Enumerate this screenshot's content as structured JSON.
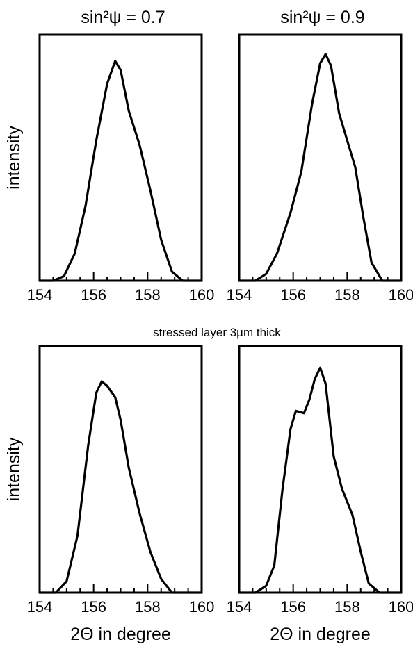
{
  "figure": {
    "column_titles": [
      "sin²ψ = 0.7",
      "sin²ψ = 0.9"
    ],
    "middle_caption": "stressed layer 3µm thick"
  },
  "chart_data": [
    {
      "type": "line",
      "title": "sin²ψ = 0.7",
      "xlabel": "",
      "ylabel": "intensity",
      "xlim": [
        154,
        160
      ],
      "ylim": [
        0,
        1
      ],
      "xticks": [
        "154",
        "156",
        "158",
        "160"
      ],
      "series": [
        {
          "x": [
            154.0,
            154.5,
            154.9,
            155.3,
            155.7,
            156.1,
            156.5,
            156.8,
            157.0,
            157.3,
            157.7,
            158.1,
            158.5,
            158.9,
            159.3,
            160.0
          ],
          "y": [
            0.0,
            0.0,
            0.02,
            0.12,
            0.33,
            0.62,
            0.87,
            0.97,
            0.93,
            0.75,
            0.6,
            0.4,
            0.18,
            0.04,
            0.0,
            0.0
          ]
        }
      ]
    },
    {
      "type": "line",
      "title": "sin²ψ = 0.9",
      "xlabel": "",
      "ylabel": "",
      "xlim": [
        154,
        160
      ],
      "ylim": [
        0,
        1
      ],
      "xticks": [
        "154",
        "156",
        "158",
        "160"
      ],
      "series": [
        {
          "x": [
            154.0,
            154.6,
            155.0,
            155.4,
            155.9,
            156.3,
            156.7,
            157.0,
            157.2,
            157.4,
            157.7,
            158.0,
            158.3,
            158.6,
            158.9,
            159.3,
            160.0
          ],
          "y": [
            0.0,
            0.0,
            0.03,
            0.12,
            0.3,
            0.48,
            0.78,
            0.96,
            1.0,
            0.95,
            0.74,
            0.62,
            0.5,
            0.28,
            0.08,
            0.0,
            0.0
          ]
        }
      ]
    },
    {
      "type": "line",
      "title": "",
      "xlabel": "2Θ in degree",
      "ylabel": "intensity",
      "xlim": [
        154,
        160
      ],
      "ylim": [
        0,
        1
      ],
      "xticks": [
        "154",
        "156",
        "158",
        "160"
      ],
      "series": [
        {
          "x": [
            154.0,
            154.6,
            155.0,
            155.4,
            155.8,
            156.1,
            156.3,
            156.5,
            156.8,
            157.0,
            157.3,
            157.7,
            158.1,
            158.5,
            158.9,
            159.3,
            160.0
          ],
          "y": [
            0.0,
            0.0,
            0.05,
            0.25,
            0.65,
            0.88,
            0.93,
            0.91,
            0.86,
            0.76,
            0.55,
            0.35,
            0.18,
            0.06,
            0.0,
            0.0,
            0.0
          ]
        }
      ]
    },
    {
      "type": "line",
      "title": "",
      "xlabel": "2Θ in degree",
      "ylabel": "",
      "xlim": [
        154,
        160
      ],
      "ylim": [
        0,
        1
      ],
      "xticks": [
        "154",
        "156",
        "158",
        "160"
      ],
      "series": [
        {
          "x": [
            154.0,
            154.6,
            155.0,
            155.3,
            155.6,
            155.9,
            156.1,
            156.4,
            156.6,
            156.8,
            157.0,
            157.2,
            157.5,
            157.8,
            158.2,
            158.5,
            158.8,
            159.2,
            160.0
          ],
          "y": [
            0.0,
            0.0,
            0.03,
            0.12,
            0.45,
            0.72,
            0.8,
            0.79,
            0.85,
            0.94,
            0.99,
            0.92,
            0.6,
            0.46,
            0.34,
            0.18,
            0.04,
            0.0,
            0.0
          ]
        }
      ]
    }
  ]
}
